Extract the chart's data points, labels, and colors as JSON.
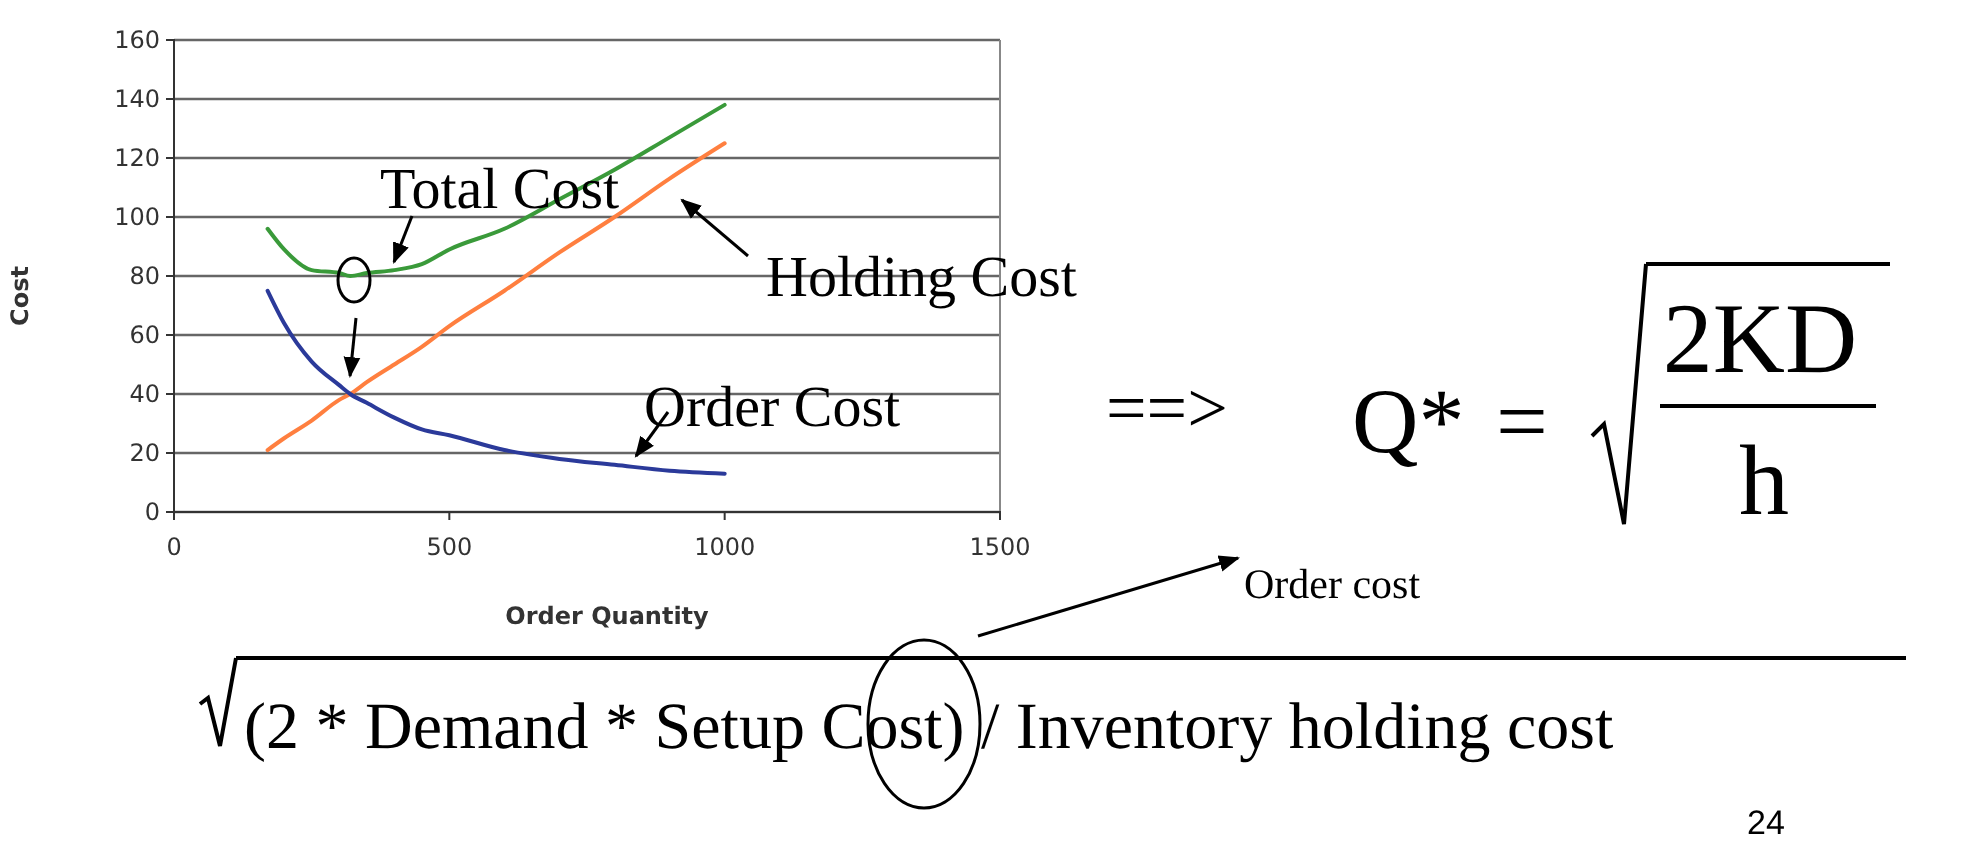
{
  "chart_data": {
    "type": "line",
    "xlabel": "Order Quantity",
    "ylabel": "Cost",
    "x": [
      170,
      200,
      250,
      300,
      320,
      350,
      400,
      450,
      500,
      600,
      700,
      800,
      900,
      1000
    ],
    "series": [
      {
        "name": "Total Cost",
        "color": "#3a9a3a",
        "values": [
          96,
          89,
          82,
          81,
          80,
          81,
          82,
          84,
          89,
          96,
          106,
          116,
          127,
          138
        ]
      },
      {
        "name": "Holding Cost",
        "color": "#ff7f3f",
        "values": [
          21,
          25,
          31,
          38,
          40,
          44,
          50,
          56,
          63,
          75,
          88,
          100,
          113,
          125
        ]
      },
      {
        "name": "Order Cost",
        "color": "#2b3a9a",
        "values": [
          75,
          64,
          51,
          43,
          40,
          37,
          32,
          28,
          26,
          21,
          18,
          16,
          14,
          13
        ]
      }
    ],
    "xlim": [
      0,
      1500
    ],
    "xticks": [
      0,
      500,
      1000,
      1500
    ],
    "ylim": [
      0,
      160
    ],
    "yticks": [
      0,
      20,
      40,
      60,
      80,
      100,
      120,
      140,
      160
    ],
    "grid": "y",
    "marker": "none",
    "line_style": "solid",
    "annotations": [
      "==>",
      "Q*",
      "=",
      "2KD",
      "h",
      "Order cost",
      "(2 * Demand * Setup Cost) / Inventory holding cost",
      "24"
    ]
  }
}
